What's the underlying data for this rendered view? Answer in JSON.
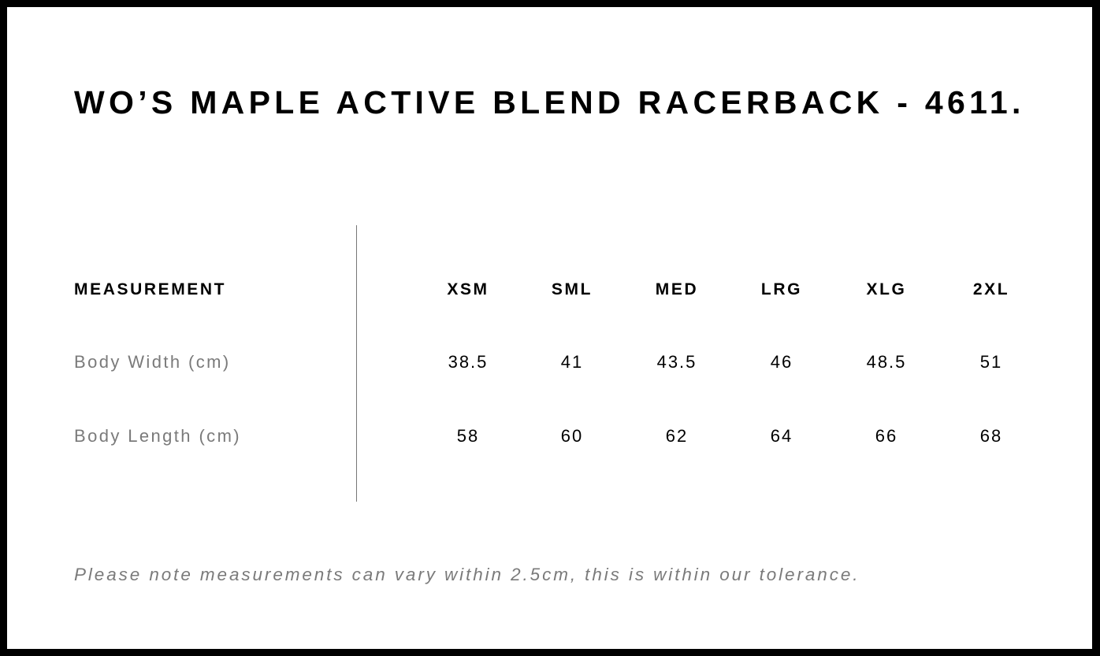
{
  "title": "WO’S MAPLE ACTIVE BLEND RACERBACK - 4611.",
  "table": {
    "header_label": "MEASUREMENT",
    "sizes": [
      "XSM",
      "SML",
      "MED",
      "LRG",
      "XLG",
      "2XL"
    ],
    "rows": [
      {
        "label": "Body Width (cm)",
        "values": [
          "38.5",
          "41",
          "43.5",
          "46",
          "48.5",
          "51"
        ]
      },
      {
        "label": "Body Length (cm)",
        "values": [
          "58",
          "60",
          "62",
          "64",
          "66",
          "68"
        ]
      }
    ]
  },
  "note": "Please note measurements can vary within 2.5cm, this is within our tolerance."
}
